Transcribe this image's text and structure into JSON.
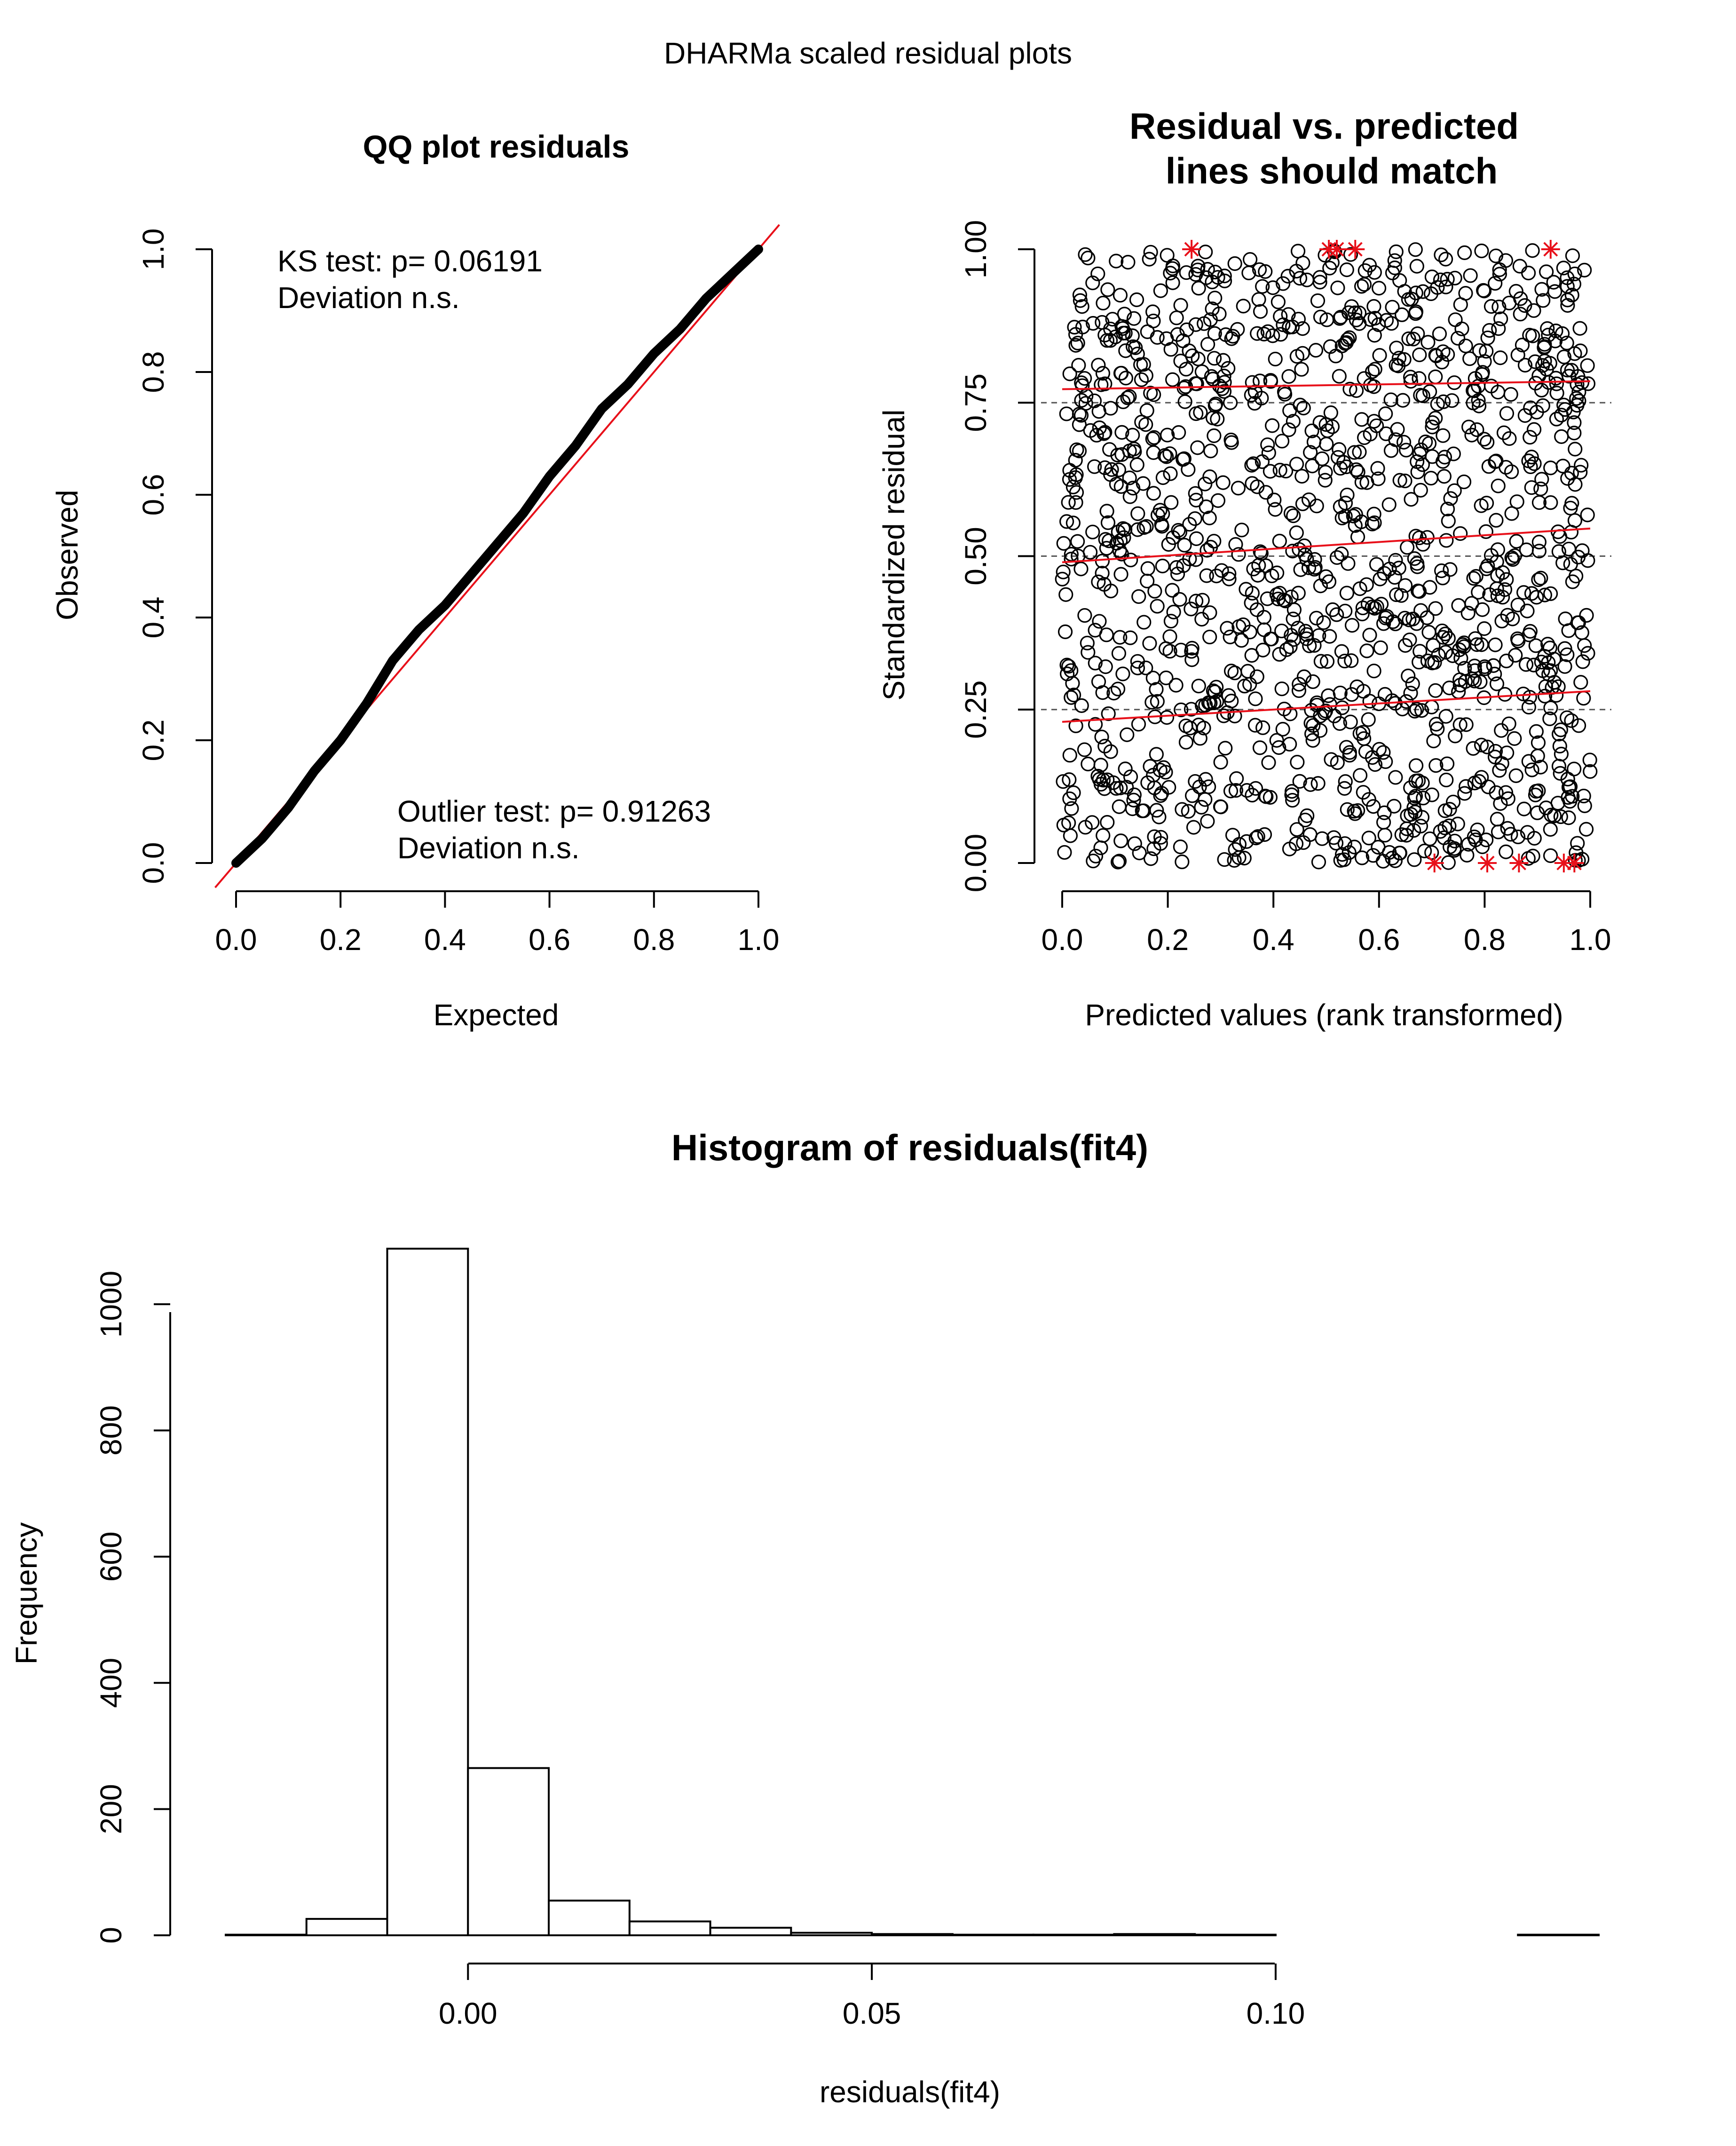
{
  "page_title": "DHARMa scaled residual plots",
  "chart_data": [
    {
      "type": "line",
      "title": "QQ plot residuals",
      "xlabel": "Expected",
      "ylabel": "Observed",
      "xlim": [
        0,
        1
      ],
      "ylim": [
        0,
        1
      ],
      "xticks": [
        "0.0",
        "0.2",
        "0.4",
        "0.6",
        "0.8",
        "1.0"
      ],
      "yticks": [
        "0.0",
        "0.2",
        "0.4",
        "0.6",
        "0.8",
        "1.0"
      ],
      "reference_line_color": "#e8101a",
      "series": [
        {
          "x": [
            0,
            0.05,
            0.1,
            0.15,
            0.2,
            0.25,
            0.3,
            0.35,
            0.4,
            0.45,
            0.5,
            0.55,
            0.6,
            0.65,
            0.7,
            0.75,
            0.8,
            0.85,
            0.9,
            0.95,
            1.0
          ],
          "y": [
            0,
            0.04,
            0.09,
            0.15,
            0.2,
            0.26,
            0.33,
            0.38,
            0.42,
            0.47,
            0.52,
            0.57,
            0.63,
            0.68,
            0.74,
            0.78,
            0.83,
            0.87,
            0.92,
            0.96,
            1.0
          ]
        }
      ],
      "annotations": [
        {
          "line1": "KS test: p= 0.06191",
          "line2": "Deviation  n.s."
        },
        {
          "line1": "Outlier test: p= 0.91263",
          "line2": "Deviation  n.s."
        }
      ]
    },
    {
      "type": "scatter",
      "title_line1": "Residual vs. predicted",
      "title_line2": "lines should match",
      "xlabel": "Predicted values (rank transformed)",
      "ylabel": "Standardized residual",
      "xlim": [
        0,
        1
      ],
      "ylim": [
        0,
        1
      ],
      "xticks": [
        "0.0",
        "0.2",
        "0.4",
        "0.6",
        "0.8",
        "1.0"
      ],
      "yticks": [
        "0.00",
        "0.25",
        "0.50",
        "0.75",
        "1.00"
      ],
      "n_points": 1400,
      "reference_levels": [
        0.25,
        0.5,
        0.75
      ],
      "quantile_lines": [
        {
          "x": [
            0,
            1
          ],
          "y": [
            0.23,
            0.28
          ]
        },
        {
          "x": [
            0,
            1
          ],
          "y": [
            0.49,
            0.545
          ]
        },
        {
          "x": [
            0,
            1
          ],
          "y": [
            0.772,
            0.785
          ]
        }
      ],
      "outliers": [
        {
          "x": 0.245,
          "y": 1.0
        },
        {
          "x": 0.505,
          "y": 1.0
        },
        {
          "x": 0.52,
          "y": 1.0
        },
        {
          "x": 0.555,
          "y": 1.0
        },
        {
          "x": 0.925,
          "y": 1.0
        },
        {
          "x": 0.705,
          "y": 0.0
        },
        {
          "x": 0.805,
          "y": 0.0
        },
        {
          "x": 0.865,
          "y": 0.0
        },
        {
          "x": 0.95,
          "y": 0.0
        },
        {
          "x": 0.97,
          "y": 0.0
        }
      ],
      "outlier_color": "#e8101a"
    },
    {
      "type": "bar",
      "title": "Histogram of residuals(fit4)",
      "xlabel": "residuals(fit4)",
      "ylabel": "Frequency",
      "bin_edges": [
        -0.03,
        -0.02,
        -0.01,
        0.0,
        0.01,
        0.02,
        0.03,
        0.04,
        0.05,
        0.06,
        0.07,
        0.08,
        0.09,
        0.1,
        0.11,
        0.12,
        0.13,
        0.14
      ],
      "values": [
        1,
        26,
        1088,
        265,
        55,
        22,
        12,
        4,
        2,
        1,
        1,
        2,
        1,
        0,
        0,
        0,
        1
      ],
      "xticks": [
        {
          "value": 0.0,
          "label": "0.00"
        },
        {
          "value": 0.05,
          "label": "0.05"
        },
        {
          "value": 0.1,
          "label": "0.10"
        }
      ],
      "yticks": [
        "0",
        "200",
        "400",
        "600",
        "800",
        "1000"
      ],
      "ylim": [
        0,
        1088
      ]
    }
  ]
}
